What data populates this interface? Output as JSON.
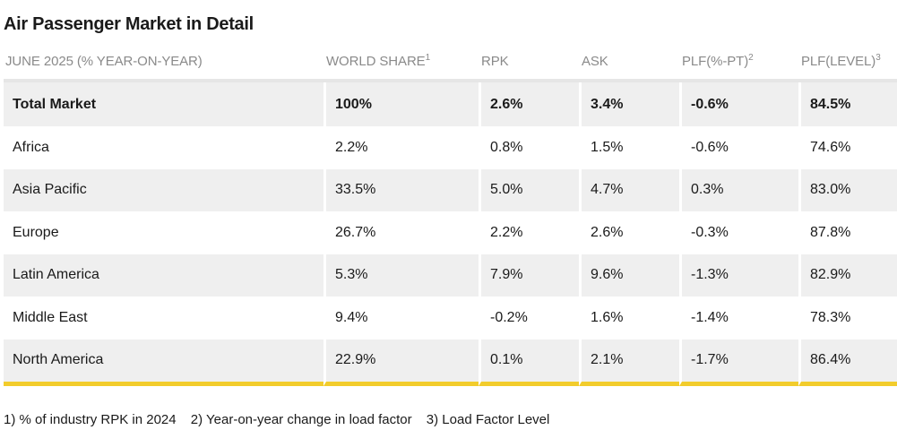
{
  "title": "Air Passenger Market in Detail",
  "accent_color": "#f2cc2c",
  "chart_data": {
    "type": "table",
    "columns": [
      {
        "label": "JUNE 2025 (% YEAR-ON-YEAR)",
        "sup": ""
      },
      {
        "label": "WORLD SHARE",
        "sup": "1"
      },
      {
        "label": "RPK",
        "sup": ""
      },
      {
        "label": "ASK",
        "sup": ""
      },
      {
        "label": "PLF(%-PT)",
        "sup": "2"
      },
      {
        "label": "PLF(LEVEL)",
        "sup": "3"
      }
    ],
    "rows": [
      {
        "region": "Total Market",
        "world_share": "100%",
        "rpk": "2.6%",
        "ask": "3.4%",
        "plf_pt": "-0.6%",
        "plf_level": "84.5%"
      },
      {
        "region": "Africa",
        "world_share": "2.2%",
        "rpk": "0.8%",
        "ask": "1.5%",
        "plf_pt": "-0.6%",
        "plf_level": "74.6%"
      },
      {
        "region": "Asia Pacific",
        "world_share": "33.5%",
        "rpk": "5.0%",
        "ask": "4.7%",
        "plf_pt": "0.3%",
        "plf_level": "83.0%"
      },
      {
        "region": "Europe",
        "world_share": "26.7%",
        "rpk": "2.2%",
        "ask": "2.6%",
        "plf_pt": "-0.3%",
        "plf_level": "87.8%"
      },
      {
        "region": "Latin America",
        "world_share": "5.3%",
        "rpk": "7.9%",
        "ask": "9.6%",
        "plf_pt": "-1.3%",
        "plf_level": "82.9%"
      },
      {
        "region": "Middle East",
        "world_share": "9.4%",
        "rpk": "-0.2%",
        "ask": "1.6%",
        "plf_pt": "-1.4%",
        "plf_level": "78.3%"
      },
      {
        "region": "North America",
        "world_share": "22.9%",
        "rpk": "0.1%",
        "ask": "2.1%",
        "plf_pt": "-1.7%",
        "plf_level": "86.4%"
      }
    ]
  },
  "footnotes": [
    "1) % of industry RPK in 2024",
    "2) Year-on-year change in load factor",
    "3) Load Factor Level"
  ]
}
